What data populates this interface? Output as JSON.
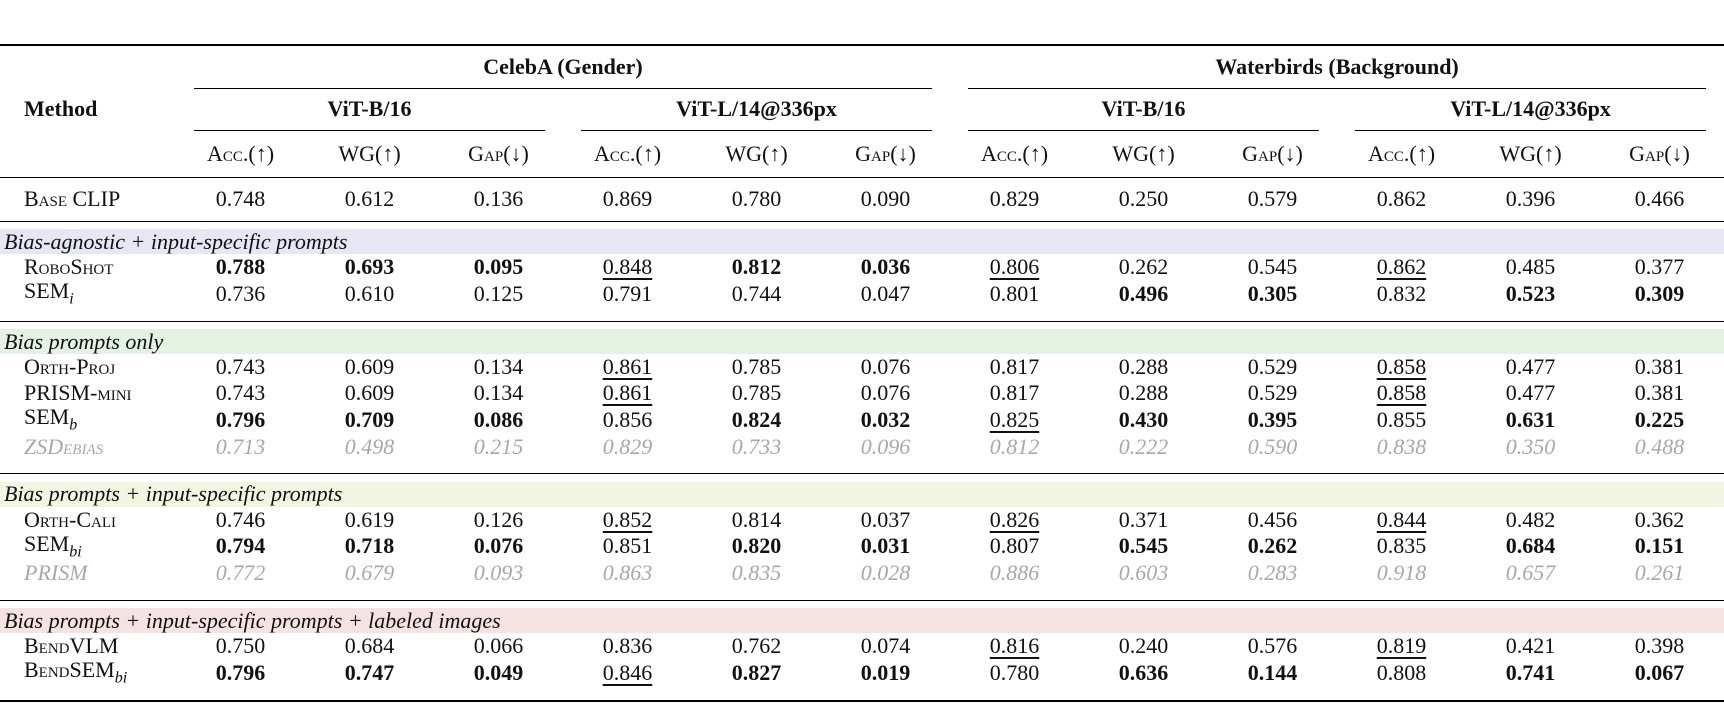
{
  "table": {
    "method_header": "Method",
    "groups": [
      {
        "title": "CelebA (Gender)",
        "models": [
          "ViT-B/16",
          "ViT-L/14@336px"
        ]
      },
      {
        "title": "Waterbirds (Background)",
        "models": [
          "ViT-B/16",
          "ViT-L/14@336px"
        ]
      }
    ],
    "metrics": [
      "Acc.(↑)",
      "WG(↑)",
      "Gap(↓)"
    ],
    "base": {
      "method": {
        "text": "Base CLIP"
      },
      "values": [
        "0.748",
        "0.612",
        "0.136",
        "0.869",
        "0.780",
        "0.090",
        "0.829",
        "0.250",
        "0.579",
        "0.862",
        "0.396",
        "0.466"
      ],
      "bold": [],
      "underline": []
    },
    "sections": [
      {
        "title": "Bias-agnostic + input-specific prompts",
        "color": "#e6e6f5",
        "rows": [
          {
            "method": {
              "text": "RoboShot"
            },
            "values": [
              "0.788",
              "0.693",
              "0.095",
              "0.848",
              "0.812",
              "0.036",
              "0.806",
              "0.262",
              "0.545",
              "0.862",
              "0.485",
              "0.377"
            ],
            "bold": [
              0,
              1,
              2,
              4,
              5
            ],
            "underline": [
              3,
              6,
              9
            ]
          },
          {
            "method": {
              "text": "SEM",
              "sub": "i"
            },
            "values": [
              "0.736",
              "0.610",
              "0.125",
              "0.791",
              "0.744",
              "0.047",
              "0.801",
              "0.496",
              "0.305",
              "0.832",
              "0.523",
              "0.309"
            ],
            "bold": [
              7,
              8,
              10,
              11
            ],
            "underline": []
          }
        ]
      },
      {
        "title": "Bias prompts only",
        "color": "#e3f2e3",
        "rows": [
          {
            "method": {
              "text": "Orth-Proj"
            },
            "values": [
              "0.743",
              "0.609",
              "0.134",
              "0.861",
              "0.785",
              "0.076",
              "0.817",
              "0.288",
              "0.529",
              "0.858",
              "0.477",
              "0.381"
            ],
            "bold": [],
            "underline": [
              3,
              9
            ]
          },
          {
            "method": {
              "text": "PRISM-mini"
            },
            "values": [
              "0.743",
              "0.609",
              "0.134",
              "0.861",
              "0.785",
              "0.076",
              "0.817",
              "0.288",
              "0.529",
              "0.858",
              "0.477",
              "0.381"
            ],
            "bold": [],
            "underline": [
              3,
              9
            ]
          },
          {
            "method": {
              "text": "SEM",
              "sub": "b"
            },
            "values": [
              "0.796",
              "0.709",
              "0.086",
              "0.856",
              "0.824",
              "0.032",
              "0.825",
              "0.430",
              "0.395",
              "0.855",
              "0.631",
              "0.225"
            ],
            "bold": [
              0,
              1,
              2,
              4,
              5,
              7,
              8,
              10,
              11
            ],
            "underline": [
              6
            ]
          },
          {
            "method": {
              "text": "ZSDebias"
            },
            "values": [
              "0.713",
              "0.498",
              "0.215",
              "0.829",
              "0.733",
              "0.096",
              "0.812",
              "0.222",
              "0.590",
              "0.838",
              "0.350",
              "0.488"
            ],
            "bold": [],
            "underline": [],
            "muted": true
          }
        ]
      },
      {
        "title": "Bias prompts + input-specific prompts",
        "color": "#f3f5e3",
        "rows": [
          {
            "method": {
              "text": "Orth-Cali"
            },
            "values": [
              "0.746",
              "0.619",
              "0.126",
              "0.852",
              "0.814",
              "0.037",
              "0.826",
              "0.371",
              "0.456",
              "0.844",
              "0.482",
              "0.362"
            ],
            "bold": [],
            "underline": [
              3,
              6,
              9
            ]
          },
          {
            "method": {
              "text": "SEM",
              "sub": "bi"
            },
            "values": [
              "0.794",
              "0.718",
              "0.076",
              "0.851",
              "0.820",
              "0.031",
              "0.807",
              "0.545",
              "0.262",
              "0.835",
              "0.684",
              "0.151"
            ],
            "bold": [
              0,
              1,
              2,
              4,
              5,
              7,
              8,
              10,
              11
            ],
            "underline": []
          },
          {
            "method": {
              "text": "PRISM"
            },
            "values": [
              "0.772",
              "0.679",
              "0.093",
              "0.863",
              "0.835",
              "0.028",
              "0.886",
              "0.603",
              "0.283",
              "0.918",
              "0.657",
              "0.261"
            ],
            "bold": [],
            "underline": [],
            "muted": true
          }
        ]
      },
      {
        "title": "Bias prompts + input-specific prompts + labeled images",
        "color": "#f5e3e3",
        "rows": [
          {
            "method": {
              "text": "BendVLM"
            },
            "values": [
              "0.750",
              "0.684",
              "0.066",
              "0.836",
              "0.762",
              "0.074",
              "0.816",
              "0.240",
              "0.576",
              "0.819",
              "0.421",
              "0.398"
            ],
            "bold": [],
            "underline": [
              6,
              9
            ]
          },
          {
            "method": {
              "text": "BendSEM",
              "sub": "bi"
            },
            "values": [
              "0.796",
              "0.747",
              "0.049",
              "0.846",
              "0.827",
              "0.019",
              "0.780",
              "0.636",
              "0.144",
              "0.808",
              "0.741",
              "0.067"
            ],
            "bold": [
              0,
              1,
              2,
              4,
              5,
              7,
              8,
              10,
              11
            ],
            "underline": [
              3
            ]
          }
        ]
      }
    ]
  }
}
